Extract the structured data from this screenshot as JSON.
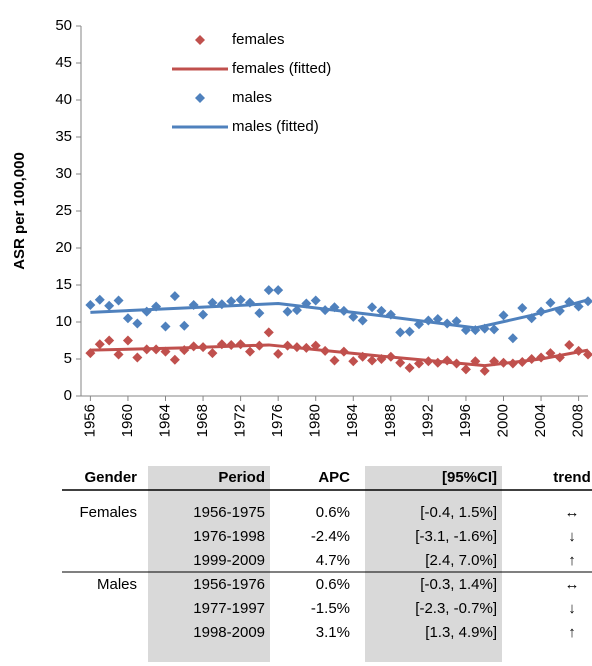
{
  "chart_data": {
    "type": "scatter",
    "y_label": "ASR per 100,000",
    "x": [
      1956,
      1957,
      1958,
      1959,
      1960,
      1961,
      1962,
      1963,
      1964,
      1965,
      1966,
      1967,
      1968,
      1969,
      1970,
      1971,
      1972,
      1973,
      1974,
      1975,
      1976,
      1977,
      1978,
      1979,
      1980,
      1981,
      1982,
      1983,
      1984,
      1985,
      1986,
      1987,
      1988,
      1989,
      1990,
      1991,
      1992,
      1993,
      1994,
      1995,
      1996,
      1997,
      1998,
      1999,
      2000,
      2001,
      2002,
      2003,
      2004,
      2005,
      2006,
      2007,
      2008,
      2009
    ],
    "series": [
      {
        "name": "females",
        "mode": "markers",
        "color": "#c0504d",
        "values": [
          5.8,
          7.0,
          7.5,
          5.6,
          7.5,
          5.2,
          6.3,
          6.3,
          6.0,
          4.9,
          6.2,
          6.7,
          6.6,
          5.8,
          7.0,
          6.9,
          7.0,
          6.0,
          6.8,
          8.6,
          5.7,
          6.8,
          6.6,
          6.5,
          6.8,
          6.1,
          4.8,
          6.0,
          4.7,
          5.3,
          4.8,
          5.0,
          5.3,
          4.5,
          3.8,
          4.4,
          4.7,
          4.5,
          4.8,
          4.4,
          3.6,
          4.7,
          3.4,
          4.7,
          4.5,
          4.4,
          4.6,
          5.0,
          5.2,
          5.8,
          5.2,
          6.9,
          6.1,
          5.6
        ]
      },
      {
        "name": "females (fitted)",
        "mode": "line",
        "color": "#c0504d",
        "x": [
          1956,
          1966,
          1975,
          1986,
          1998,
          2004,
          2009
        ],
        "values": [
          6.2,
          6.5,
          6.9,
          5.5,
          4.1,
          5.0,
          6.2
        ]
      },
      {
        "name": "males",
        "mode": "markers",
        "color": "#4f81bd",
        "values": [
          12.3,
          13.0,
          12.2,
          12.9,
          10.5,
          9.8,
          11.4,
          12.1,
          9.4,
          13.5,
          9.5,
          12.3,
          11.0,
          12.6,
          12.4,
          12.8,
          13.0,
          12.6,
          11.2,
          14.3,
          14.3,
          11.4,
          11.6,
          12.5,
          12.9,
          11.6,
          12.0,
          11.5,
          10.7,
          10.2,
          12.0,
          11.5,
          11.0,
          8.6,
          8.7,
          9.7,
          10.2,
          10.4,
          9.8,
          10.1,
          8.9,
          8.9,
          9.1,
          9.0,
          10.9,
          7.8,
          11.9,
          10.5,
          11.4,
          12.6,
          11.5,
          12.7,
          12.1,
          12.8
        ]
      },
      {
        "name": "males (fitted)",
        "mode": "line",
        "color": "#4f81bd",
        "x": [
          1956,
          1966,
          1976,
          1986,
          1997,
          2003,
          2009
        ],
        "values": [
          11.3,
          11.9,
          12.5,
          11.0,
          9.2,
          10.9,
          13.0
        ]
      }
    ],
    "xlim": [
      1955,
      2009
    ],
    "xticks": [
      1956,
      1960,
      1964,
      1968,
      1972,
      1976,
      1980,
      1984,
      1988,
      1992,
      1996,
      2000,
      2004,
      2008
    ],
    "ylim": [
      0,
      50
    ],
    "yticks": [
      0,
      5,
      10,
      15,
      20,
      25,
      30,
      35,
      40,
      45,
      50
    ],
    "grid": false,
    "legend": "top-left"
  },
  "table": {
    "headers": [
      "Gender",
      "Period",
      "APC",
      "[95%CI]",
      "trend"
    ],
    "groups": [
      {
        "gender": "Females",
        "rows": [
          [
            "1956-1975",
            "0.6%",
            "[-0.4, 1.5%]",
            "↔"
          ],
          [
            "1976-1998",
            "-2.4%",
            "[-3.1, -1.6%]",
            "↓"
          ],
          [
            "1999-2009",
            "4.7%",
            "[2.4, 7.0%]",
            "↑"
          ]
        ]
      },
      {
        "gender": "Males",
        "rows": [
          [
            "1956-1976",
            "0.6%",
            "[-0.3, 1.4%]",
            "↔"
          ],
          [
            "1977-1997",
            "-1.5%",
            "[-2.3, -0.7%]",
            "↓"
          ],
          [
            "1998-2009",
            "3.1%",
            "[1.3, 4.9%]",
            "↑"
          ]
        ]
      }
    ]
  }
}
